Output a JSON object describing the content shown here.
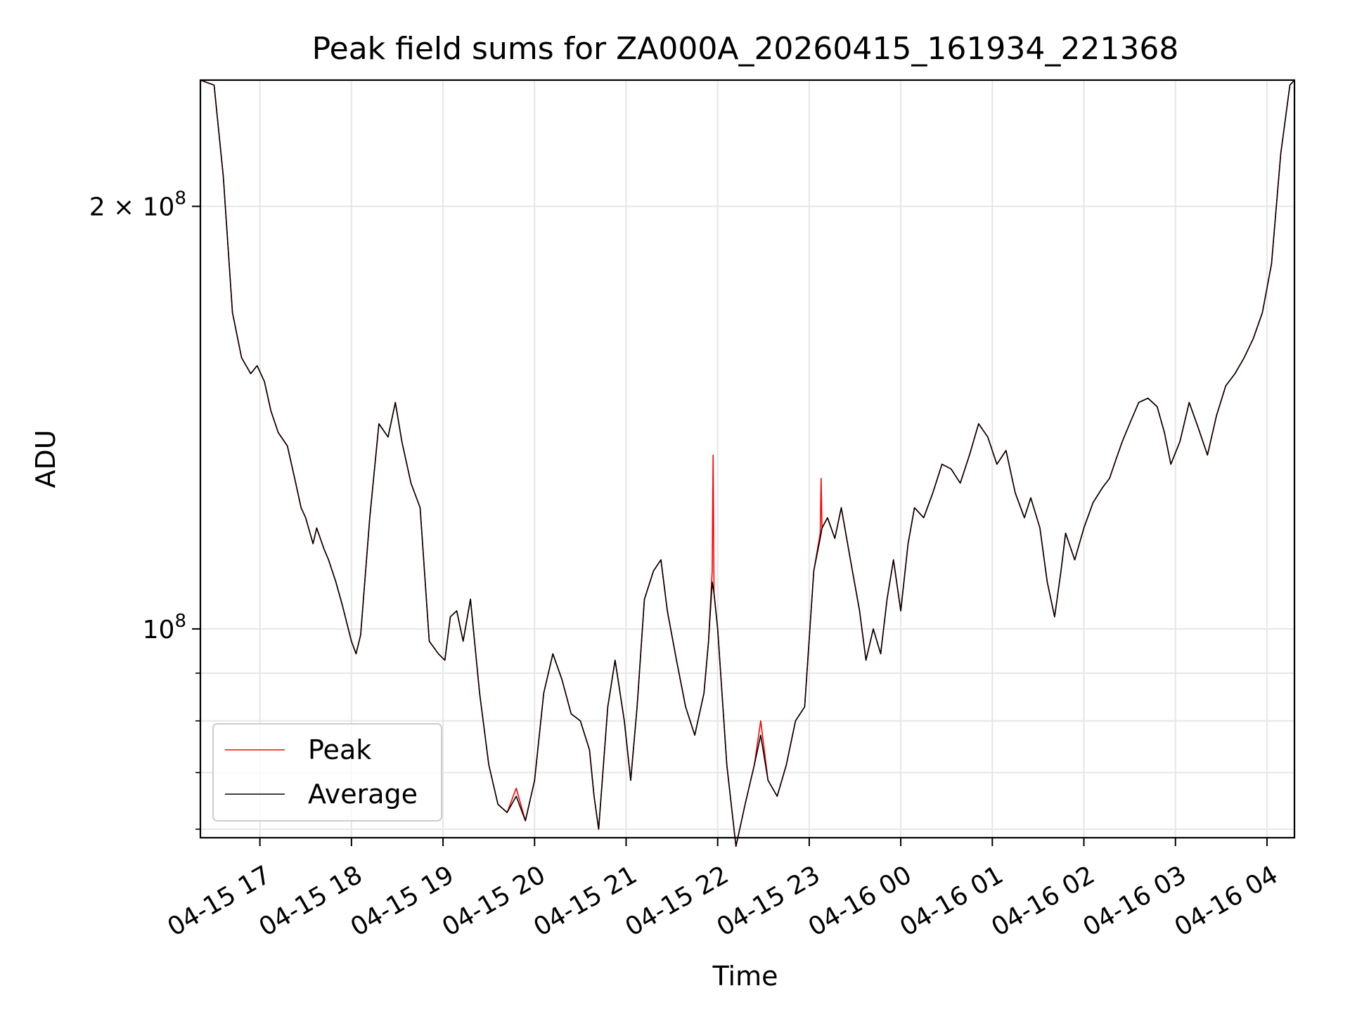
{
  "chart_data": {
    "type": "line",
    "title": "Peak field sums for ZA000A_20260415_161934_221368",
    "xlabel": "Time",
    "ylabel": "ADU",
    "yscale": "log",
    "xlim": [
      16.35,
      28.3
    ],
    "ylim": [
      71000000,
      246000000
    ],
    "x_ticks": [
      {
        "x": 17,
        "label": "04-15 17"
      },
      {
        "x": 18,
        "label": "04-15 18"
      },
      {
        "x": 19,
        "label": "04-15 19"
      },
      {
        "x": 20,
        "label": "04-15 20"
      },
      {
        "x": 21,
        "label": "04-15 21"
      },
      {
        "x": 22,
        "label": "04-15 22"
      },
      {
        "x": 23,
        "label": "04-15 23"
      },
      {
        "x": 24,
        "label": "04-16 00"
      },
      {
        "x": 25,
        "label": "04-16 01"
      },
      {
        "x": 26,
        "label": "04-16 02"
      },
      {
        "x": 27,
        "label": "04-16 03"
      },
      {
        "x": 28,
        "label": "04-16 04"
      }
    ],
    "y_major_ticks": [
      {
        "y": 100000000,
        "base": "10",
        "exp": "8",
        "mult": ""
      },
      {
        "y": 200000000,
        "base": "10",
        "exp": "8",
        "mult": "2 × "
      }
    ],
    "y_minor_ticks": [
      72000000,
      79000000,
      86000000,
      93000000
    ],
    "grid": true,
    "legend_position": "lower-left",
    "series": [
      {
        "name": "Peak",
        "color": "#ff0000",
        "points": [
          [
            16.35,
            246
          ],
          [
            16.5,
            244
          ],
          [
            16.6,
            210
          ],
          [
            16.7,
            168
          ],
          [
            16.8,
            156
          ],
          [
            16.9,
            152
          ],
          [
            16.97,
            154
          ],
          [
            17.05,
            150
          ],
          [
            17.12,
            143
          ],
          [
            17.2,
            138
          ],
          [
            17.3,
            135
          ],
          [
            17.38,
            128
          ],
          [
            17.45,
            122
          ],
          [
            17.5,
            120
          ],
          [
            17.58,
            115
          ],
          [
            17.62,
            118
          ],
          [
            17.7,
            114
          ],
          [
            17.75,
            112
          ],
          [
            17.83,
            108
          ],
          [
            17.9,
            104
          ],
          [
            18.0,
            98
          ],
          [
            18.05,
            96
          ],
          [
            18.1,
            99
          ],
          [
            18.2,
            120
          ],
          [
            18.3,
            140
          ],
          [
            18.4,
            137
          ],
          [
            18.48,
            145
          ],
          [
            18.55,
            136
          ],
          [
            18.65,
            127
          ],
          [
            18.75,
            122
          ],
          [
            18.85,
            98
          ],
          [
            18.95,
            96
          ],
          [
            19.02,
            95
          ],
          [
            19.08,
            102
          ],
          [
            19.15,
            103
          ],
          [
            19.22,
            98
          ],
          [
            19.3,
            105
          ],
          [
            19.4,
            90
          ],
          [
            19.5,
            80
          ],
          [
            19.6,
            75
          ],
          [
            19.7,
            74
          ],
          [
            19.8,
            77
          ],
          [
            19.9,
            73
          ],
          [
            20.0,
            78
          ],
          [
            20.1,
            90
          ],
          [
            20.2,
            96
          ],
          [
            20.3,
            92
          ],
          [
            20.4,
            87
          ],
          [
            20.5,
            86
          ],
          [
            20.6,
            82
          ],
          [
            20.65,
            76
          ],
          [
            20.7,
            72
          ],
          [
            20.8,
            88
          ],
          [
            20.88,
            95
          ],
          [
            20.98,
            86
          ],
          [
            21.05,
            78
          ],
          [
            21.12,
            88
          ],
          [
            21.2,
            105
          ],
          [
            21.3,
            110
          ],
          [
            21.38,
            112
          ],
          [
            21.45,
            103
          ],
          [
            21.55,
            95
          ],
          [
            21.65,
            88
          ],
          [
            21.75,
            84
          ],
          [
            21.85,
            90
          ],
          [
            21.9,
            98
          ],
          [
            21.94,
            110
          ],
          [
            21.95,
            133
          ],
          [
            21.96,
            106
          ],
          [
            22.0,
            100
          ],
          [
            22.1,
            80
          ],
          [
            22.2,
            70
          ],
          [
            22.3,
            75
          ],
          [
            22.4,
            80
          ],
          [
            22.47,
            86
          ],
          [
            22.55,
            78
          ],
          [
            22.65,
            76
          ],
          [
            22.75,
            80
          ],
          [
            22.85,
            86
          ],
          [
            22.95,
            88
          ],
          [
            23.05,
            110
          ],
          [
            23.12,
            117
          ],
          [
            23.13,
            128
          ],
          [
            23.14,
            118
          ],
          [
            23.2,
            120
          ],
          [
            23.28,
            116
          ],
          [
            23.35,
            122
          ],
          [
            23.45,
            112
          ],
          [
            23.55,
            103
          ],
          [
            23.62,
            95
          ],
          [
            23.7,
            100
          ],
          [
            23.78,
            96
          ],
          [
            23.85,
            105
          ],
          [
            23.92,
            112
          ],
          [
            24.0,
            103
          ],
          [
            24.08,
            115
          ],
          [
            24.15,
            122
          ],
          [
            24.25,
            120
          ],
          [
            24.35,
            125
          ],
          [
            24.45,
            131
          ],
          [
            24.55,
            130
          ],
          [
            24.65,
            127
          ],
          [
            24.75,
            133
          ],
          [
            24.85,
            140
          ],
          [
            24.95,
            137
          ],
          [
            25.05,
            131
          ],
          [
            25.15,
            134
          ],
          [
            25.25,
            125
          ],
          [
            25.35,
            120
          ],
          [
            25.42,
            124
          ],
          [
            25.52,
            118
          ],
          [
            25.6,
            108
          ],
          [
            25.68,
            102
          ],
          [
            25.75,
            110
          ],
          [
            25.8,
            117
          ],
          [
            25.9,
            112
          ],
          [
            26.0,
            118
          ],
          [
            26.1,
            123
          ],
          [
            26.2,
            126
          ],
          [
            26.28,
            128
          ],
          [
            26.35,
            132
          ],
          [
            26.42,
            136
          ],
          [
            26.5,
            140
          ],
          [
            26.6,
            145
          ],
          [
            26.7,
            146
          ],
          [
            26.8,
            144
          ],
          [
            26.88,
            138
          ],
          [
            26.95,
            131
          ],
          [
            27.05,
            136
          ],
          [
            27.15,
            145
          ],
          [
            27.25,
            139
          ],
          [
            27.35,
            133
          ],
          [
            27.45,
            142
          ],
          [
            27.55,
            149
          ],
          [
            27.65,
            152
          ],
          [
            27.75,
            156
          ],
          [
            27.85,
            161
          ],
          [
            27.95,
            168
          ],
          [
            28.05,
            182
          ],
          [
            28.15,
            218
          ],
          [
            28.25,
            244
          ],
          [
            28.3,
            246
          ]
        ]
      },
      {
        "name": "Average",
        "color": "#000000",
        "points": [
          [
            16.35,
            246
          ],
          [
            16.5,
            244
          ],
          [
            16.6,
            210
          ],
          [
            16.7,
            168
          ],
          [
            16.8,
            156
          ],
          [
            16.9,
            152
          ],
          [
            16.97,
            154
          ],
          [
            17.05,
            150
          ],
          [
            17.12,
            143
          ],
          [
            17.2,
            138
          ],
          [
            17.3,
            135
          ],
          [
            17.38,
            128
          ],
          [
            17.45,
            122
          ],
          [
            17.5,
            120
          ],
          [
            17.58,
            115
          ],
          [
            17.62,
            118
          ],
          [
            17.7,
            114
          ],
          [
            17.75,
            112
          ],
          [
            17.83,
            108
          ],
          [
            17.9,
            104
          ],
          [
            18.0,
            98
          ],
          [
            18.05,
            96
          ],
          [
            18.1,
            99
          ],
          [
            18.2,
            120
          ],
          [
            18.3,
            140
          ],
          [
            18.4,
            137
          ],
          [
            18.48,
            145
          ],
          [
            18.55,
            136
          ],
          [
            18.65,
            127
          ],
          [
            18.75,
            122
          ],
          [
            18.85,
            98
          ],
          [
            18.95,
            96
          ],
          [
            19.02,
            95
          ],
          [
            19.08,
            102
          ],
          [
            19.15,
            103
          ],
          [
            19.22,
            98
          ],
          [
            19.3,
            105
          ],
          [
            19.4,
            90
          ],
          [
            19.5,
            80
          ],
          [
            19.6,
            75
          ],
          [
            19.7,
            74
          ],
          [
            19.8,
            76
          ],
          [
            19.9,
            73
          ],
          [
            20.0,
            78
          ],
          [
            20.1,
            90
          ],
          [
            20.2,
            96
          ],
          [
            20.3,
            92
          ],
          [
            20.4,
            87
          ],
          [
            20.5,
            86
          ],
          [
            20.6,
            82
          ],
          [
            20.65,
            76
          ],
          [
            20.7,
            72
          ],
          [
            20.8,
            88
          ],
          [
            20.88,
            95
          ],
          [
            20.98,
            86
          ],
          [
            21.05,
            78
          ],
          [
            21.12,
            88
          ],
          [
            21.2,
            105
          ],
          [
            21.3,
            110
          ],
          [
            21.38,
            112
          ],
          [
            21.45,
            103
          ],
          [
            21.55,
            95
          ],
          [
            21.65,
            88
          ],
          [
            21.75,
            84
          ],
          [
            21.85,
            90
          ],
          [
            21.9,
            98
          ],
          [
            21.94,
            108
          ],
          [
            21.96,
            106
          ],
          [
            22.0,
            100
          ],
          [
            22.1,
            80
          ],
          [
            22.2,
            70
          ],
          [
            22.3,
            75
          ],
          [
            22.4,
            80
          ],
          [
            22.47,
            84
          ],
          [
            22.55,
            78
          ],
          [
            22.65,
            76
          ],
          [
            22.75,
            80
          ],
          [
            22.85,
            86
          ],
          [
            22.95,
            88
          ],
          [
            23.05,
            110
          ],
          [
            23.12,
            116
          ],
          [
            23.14,
            118
          ],
          [
            23.2,
            120
          ],
          [
            23.28,
            116
          ],
          [
            23.35,
            122
          ],
          [
            23.45,
            112
          ],
          [
            23.55,
            103
          ],
          [
            23.62,
            95
          ],
          [
            23.7,
            100
          ],
          [
            23.78,
            96
          ],
          [
            23.85,
            105
          ],
          [
            23.92,
            112
          ],
          [
            24.0,
            103
          ],
          [
            24.08,
            115
          ],
          [
            24.15,
            122
          ],
          [
            24.25,
            120
          ],
          [
            24.35,
            125
          ],
          [
            24.45,
            131
          ],
          [
            24.55,
            130
          ],
          [
            24.65,
            127
          ],
          [
            24.75,
            133
          ],
          [
            24.85,
            140
          ],
          [
            24.95,
            137
          ],
          [
            25.05,
            131
          ],
          [
            25.15,
            134
          ],
          [
            25.25,
            125
          ],
          [
            25.35,
            120
          ],
          [
            25.42,
            124
          ],
          [
            25.52,
            118
          ],
          [
            25.6,
            108
          ],
          [
            25.68,
            102
          ],
          [
            25.75,
            110
          ],
          [
            25.8,
            117
          ],
          [
            25.9,
            112
          ],
          [
            26.0,
            118
          ],
          [
            26.1,
            123
          ],
          [
            26.2,
            126
          ],
          [
            26.28,
            128
          ],
          [
            26.35,
            132
          ],
          [
            26.42,
            136
          ],
          [
            26.5,
            140
          ],
          [
            26.6,
            145
          ],
          [
            26.7,
            146
          ],
          [
            26.8,
            144
          ],
          [
            26.88,
            138
          ],
          [
            26.95,
            131
          ],
          [
            27.05,
            136
          ],
          [
            27.15,
            145
          ],
          [
            27.25,
            139
          ],
          [
            27.35,
            133
          ],
          [
            27.45,
            142
          ],
          [
            27.55,
            149
          ],
          [
            27.65,
            152
          ],
          [
            27.75,
            156
          ],
          [
            27.85,
            161
          ],
          [
            27.95,
            168
          ],
          [
            28.05,
            182
          ],
          [
            28.15,
            218
          ],
          [
            28.25,
            244
          ],
          [
            28.3,
            246
          ]
        ]
      }
    ],
    "y_unit_scale": 1000000
  }
}
